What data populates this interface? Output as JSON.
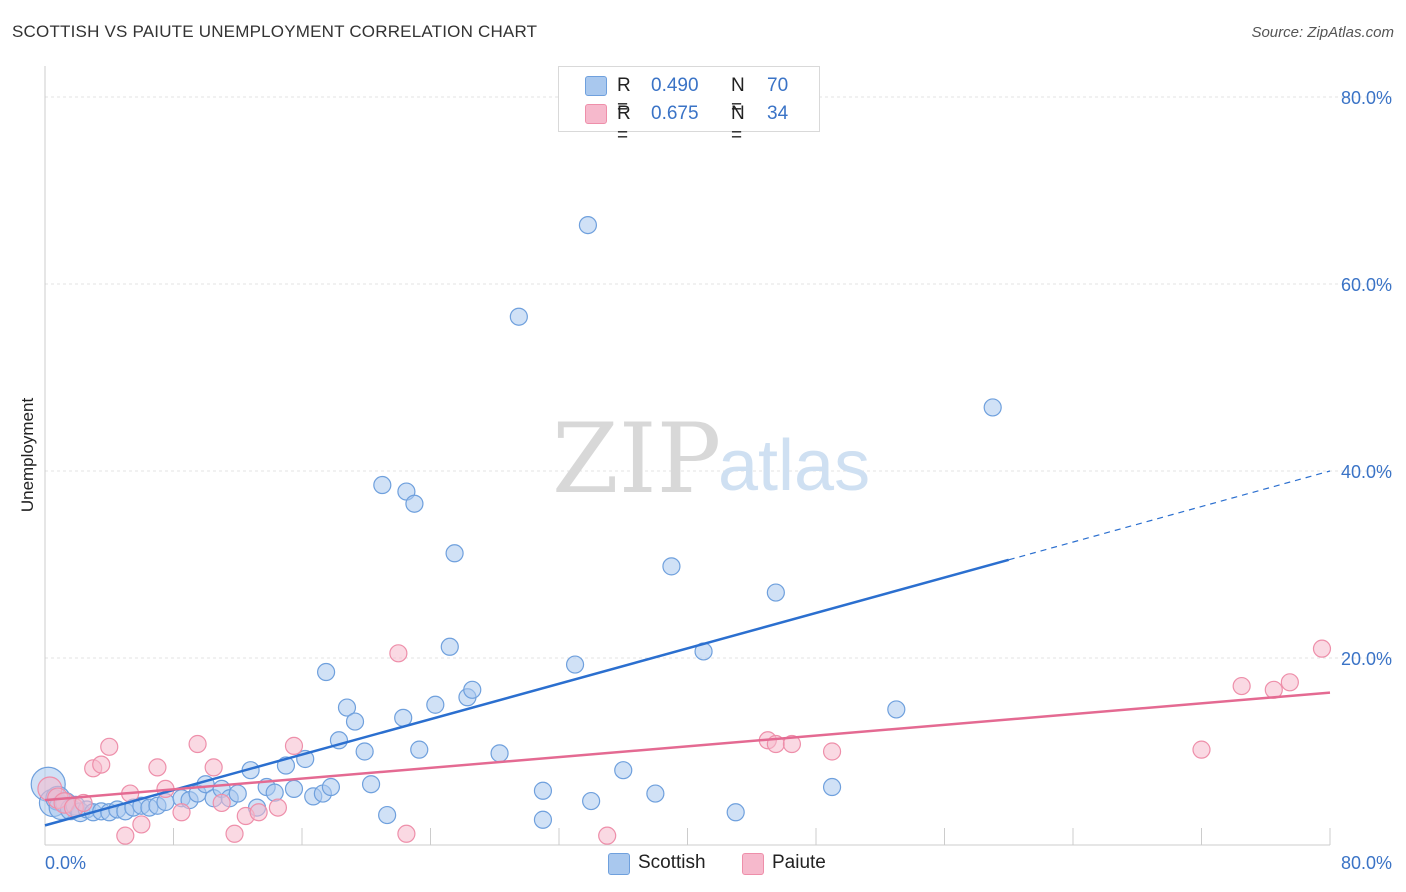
{
  "header": {
    "title": "SCOTTISH VS PAIUTE UNEMPLOYMENT CORRELATION CHART",
    "source": "Source: ZipAtlas.com"
  },
  "watermark": {
    "part1": "ZIP",
    "part2": "atlas"
  },
  "legend_top": [
    {
      "r_label": "R =",
      "r_value": "0.490",
      "n_label": "N =",
      "n_value": "70",
      "color": "#a9c8ee"
    },
    {
      "r_label": "R =",
      "r_value": "0.675",
      "n_label": "N =",
      "n_value": "34",
      "color": "#f6b9cc"
    }
  ],
  "legend_bottom": [
    {
      "label": "Scottish",
      "color": "#a9c8ee"
    },
    {
      "label": "Paiute",
      "color": "#f6b9cc"
    }
  ],
  "chart_data": {
    "type": "scatter",
    "title": "SCOTTISH VS PAIUTE UNEMPLOYMENT CORRELATION CHART",
    "xlabel": "",
    "ylabel": "Unemployment",
    "xlim": [
      0,
      80
    ],
    "ylim": [
      0,
      80
    ],
    "x_tick_labels": [
      "0.0%",
      "80.0%"
    ],
    "y_tick_labels": [
      "80.0%",
      "60.0%",
      "40.0%",
      "20.0%"
    ],
    "y_ticks": [
      80,
      60,
      40,
      20
    ],
    "grid": true,
    "legend_position": "top-center",
    "series": [
      {
        "name": "Scottish",
        "color": "#6fa0dd",
        "fill": "#a9c8ee",
        "line_color": "#2b6fcf",
        "trend": {
          "x": [
            0,
            60
          ],
          "y": [
            2.1,
            30.5
          ],
          "dashed_to": [
            80,
            40.0
          ]
        },
        "points": [
          [
            0.2,
            6.5,
            20
          ],
          [
            0.5,
            4.5,
            16
          ],
          [
            0.8,
            5.0,
            14
          ],
          [
            1.0,
            4.0,
            14
          ],
          [
            1.3,
            4.5,
            12
          ],
          [
            1.6,
            3.8,
            12
          ],
          [
            1.9,
            4.2,
            11
          ],
          [
            2.2,
            3.5,
            11
          ],
          [
            2.6,
            3.8,
            10
          ],
          [
            3.0,
            3.5,
            10
          ],
          [
            3.5,
            3.6,
            10
          ],
          [
            4.0,
            3.5,
            10
          ],
          [
            4.5,
            3.8,
            10
          ],
          [
            5.0,
            3.6,
            10
          ],
          [
            5.5,
            4.0,
            10
          ],
          [
            6.0,
            4.2,
            10
          ],
          [
            6.5,
            4.0,
            10
          ],
          [
            7.0,
            4.2,
            10
          ],
          [
            7.5,
            4.6,
            10
          ],
          [
            8.5,
            5.0,
            10
          ],
          [
            9.0,
            4.8,
            10
          ],
          [
            9.5,
            5.5,
            10
          ],
          [
            10.0,
            6.5,
            10
          ],
          [
            10.5,
            5.0,
            10
          ],
          [
            11.0,
            6.0,
            10
          ],
          [
            11.5,
            5.0,
            10
          ],
          [
            12.0,
            5.5,
            10
          ],
          [
            12.8,
            8.0,
            10
          ],
          [
            13.2,
            4.0,
            10
          ],
          [
            13.8,
            6.2,
            10
          ],
          [
            14.3,
            5.6,
            10
          ],
          [
            15.0,
            8.5,
            10
          ],
          [
            15.5,
            6.0,
            10
          ],
          [
            16.2,
            9.2,
            10
          ],
          [
            16.7,
            5.2,
            10
          ],
          [
            17.3,
            5.5,
            10
          ],
          [
            17.8,
            6.2,
            10
          ],
          [
            18.3,
            11.2,
            10
          ],
          [
            18.8,
            14.7,
            10
          ],
          [
            19.3,
            13.2,
            10
          ],
          [
            19.9,
            10.0,
            10
          ],
          [
            20.3,
            6.5,
            10
          ],
          [
            21.3,
            3.2,
            10
          ],
          [
            22.3,
            13.6,
            10
          ],
          [
            23.3,
            10.2,
            10
          ],
          [
            24.3,
            15.0,
            10
          ],
          [
            25.2,
            21.2,
            10
          ],
          [
            26.3,
            15.8,
            10
          ],
          [
            26.6,
            16.6,
            10
          ],
          [
            28.3,
            9.8,
            10
          ],
          [
            21.0,
            38.5,
            10
          ],
          [
            22.5,
            37.8,
            10
          ],
          [
            23.0,
            36.5,
            10
          ],
          [
            25.5,
            31.2,
            10
          ],
          [
            17.5,
            18.5,
            10
          ],
          [
            29.5,
            56.5,
            10
          ],
          [
            31.0,
            5.8,
            10
          ],
          [
            31.0,
            2.7,
            10
          ],
          [
            33.0,
            19.3,
            10
          ],
          [
            33.8,
            66.3,
            10
          ],
          [
            34.0,
            4.7,
            10
          ],
          [
            36.0,
            8.0,
            10
          ],
          [
            38.0,
            5.5,
            10
          ],
          [
            39.0,
            29.8,
            10
          ],
          [
            41.0,
            20.7,
            10
          ],
          [
            43.0,
            3.5,
            10
          ],
          [
            45.5,
            27.0,
            10
          ],
          [
            49.0,
            6.2,
            10
          ],
          [
            53.0,
            14.5,
            10
          ],
          [
            59.0,
            46.8,
            10
          ]
        ]
      },
      {
        "name": "Paiute",
        "color": "#ee8faa",
        "fill": "#f6b9cc",
        "line_color": "#e46a92",
        "trend": {
          "x": [
            0,
            80
          ],
          "y": [
            4.8,
            16.3
          ]
        },
        "points": [
          [
            0.3,
            6.0,
            14
          ],
          [
            0.8,
            5.0,
            12
          ],
          [
            1.2,
            4.5,
            12
          ],
          [
            1.8,
            4.0,
            11
          ],
          [
            2.4,
            4.5,
            10
          ],
          [
            3.0,
            8.2,
            10
          ],
          [
            3.5,
            8.6,
            10
          ],
          [
            4.0,
            10.5,
            10
          ],
          [
            5.0,
            1.0,
            10
          ],
          [
            5.3,
            5.5,
            10
          ],
          [
            6.0,
            2.2,
            10
          ],
          [
            7.0,
            8.3,
            10
          ],
          [
            7.5,
            6.0,
            10
          ],
          [
            8.5,
            3.5,
            10
          ],
          [
            9.5,
            10.8,
            10
          ],
          [
            10.5,
            8.3,
            10
          ],
          [
            11.0,
            4.5,
            10
          ],
          [
            11.8,
            1.2,
            10
          ],
          [
            12.5,
            3.1,
            10
          ],
          [
            13.3,
            3.5,
            10
          ],
          [
            14.5,
            4.0,
            10
          ],
          [
            15.5,
            10.6,
            10
          ],
          [
            22.0,
            20.5,
            10
          ],
          [
            22.5,
            1.2,
            10
          ],
          [
            35.0,
            1.0,
            10
          ],
          [
            45.0,
            11.2,
            10
          ],
          [
            45.5,
            10.8,
            10
          ],
          [
            46.5,
            10.8,
            10
          ],
          [
            49.0,
            10.0,
            10
          ],
          [
            72.0,
            10.2,
            10
          ],
          [
            74.5,
            17.0,
            10
          ],
          [
            76.5,
            16.6,
            10
          ],
          [
            77.5,
            17.4,
            10
          ],
          [
            79.5,
            21.0,
            10
          ]
        ]
      }
    ]
  }
}
